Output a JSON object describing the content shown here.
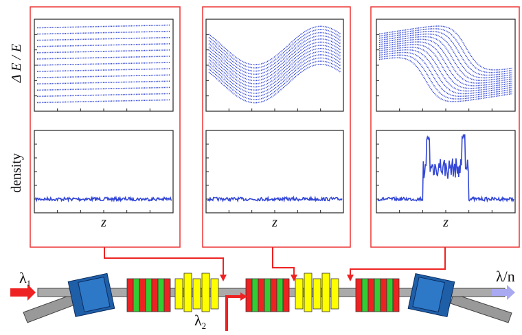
{
  "y_labels": {
    "top": "Δ E / E",
    "bottom": "density"
  },
  "panels": [
    {
      "x_label": "z"
    },
    {
      "x_label": "z"
    },
    {
      "x_label": "z"
    }
  ],
  "beamline": {
    "input": {
      "symbol": "λ",
      "subscript": "1"
    },
    "seed": {
      "symbol": "λ",
      "subscript": "2"
    },
    "output": "λ/n"
  }
}
